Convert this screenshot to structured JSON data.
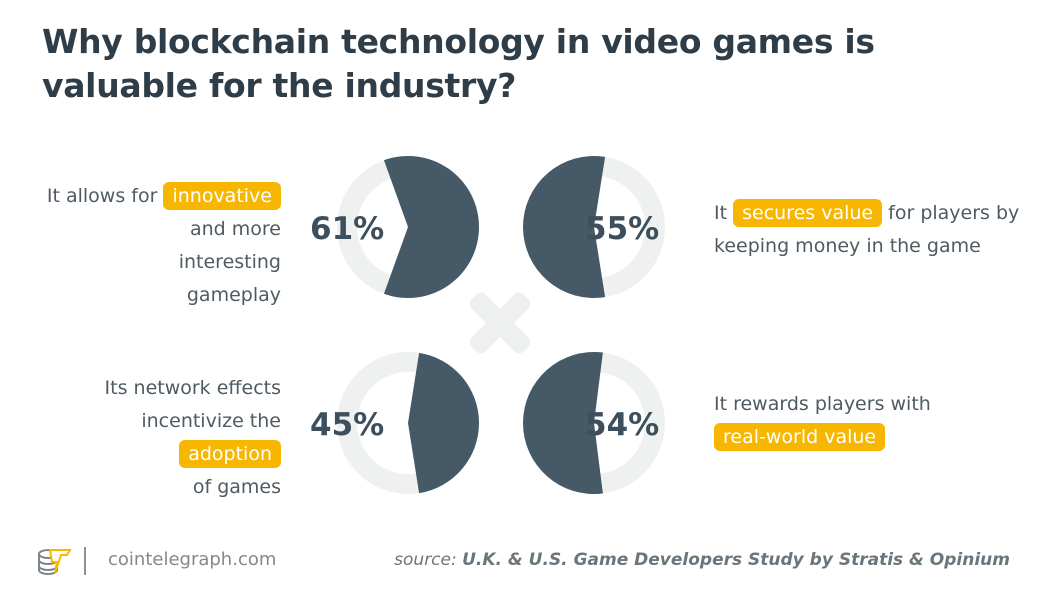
{
  "title": "Why blockchain technology in video games is valuable for the industry?",
  "chart_data": {
    "type": "pie",
    "items": [
      {
        "value": 61,
        "label": "61%",
        "text_before": "It allows for",
        "highlight": "innovative",
        "text_after": "and more interesting gameplay"
      },
      {
        "value": 55,
        "label": "55%",
        "text_before": "It",
        "highlight": "secures value",
        "text_after": "for players by keeping money in the game"
      },
      {
        "value": 45,
        "label": "45%",
        "text_before": "Its network effects incentivize the",
        "highlight": "adoption",
        "text_after": "of games"
      },
      {
        "value": 54,
        "label": "54%",
        "text_before": "It rewards players with",
        "highlight": "real-world value",
        "text_after": ""
      }
    ],
    "colors": {
      "slice": "#455a66",
      "ring": "#eff1f0",
      "highlight": "#f7b600"
    }
  },
  "footer": {
    "site": "cointelegraph.com",
    "source_prefix": "source:",
    "source": "U.K. & U.S. Game Developers Study by Stratis & Opinium"
  }
}
